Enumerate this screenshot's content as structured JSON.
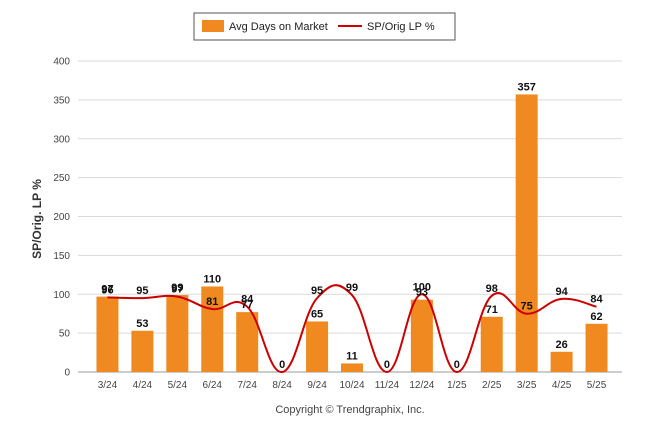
{
  "chart_data": {
    "type": "bar",
    "categories": [
      "3/24",
      "4/24",
      "5/24",
      "6/24",
      "7/24",
      "8/24",
      "9/24",
      "10/24",
      "11/24",
      "12/24",
      "1/25",
      "2/25",
      "3/25",
      "4/25",
      "5/25"
    ],
    "series": [
      {
        "name": "Avg Days on Market",
        "type": "bar",
        "color": "#f0891f",
        "values": [
          97,
          53,
          99,
          110,
          77,
          0,
          65,
          11,
          0,
          93,
          0,
          71,
          357,
          26,
          62
        ]
      },
      {
        "name": "SP/Orig LP %",
        "type": "line",
        "color": "#cc0000",
        "values": [
          96,
          95,
          97,
          81,
          84,
          null,
          95,
          99,
          null,
          100,
          null,
          98,
          75,
          94,
          84
        ]
      }
    ],
    "ylabel": "SP/Orig. LP %",
    "yticks": [
      0,
      50,
      100,
      150,
      200,
      250,
      300,
      350,
      400
    ],
    "ylim": [
      0,
      400
    ],
    "grid": true,
    "legend_position": "top-center"
  },
  "footer": {
    "copyright": "Copyright © Trendgraphix, Inc."
  }
}
